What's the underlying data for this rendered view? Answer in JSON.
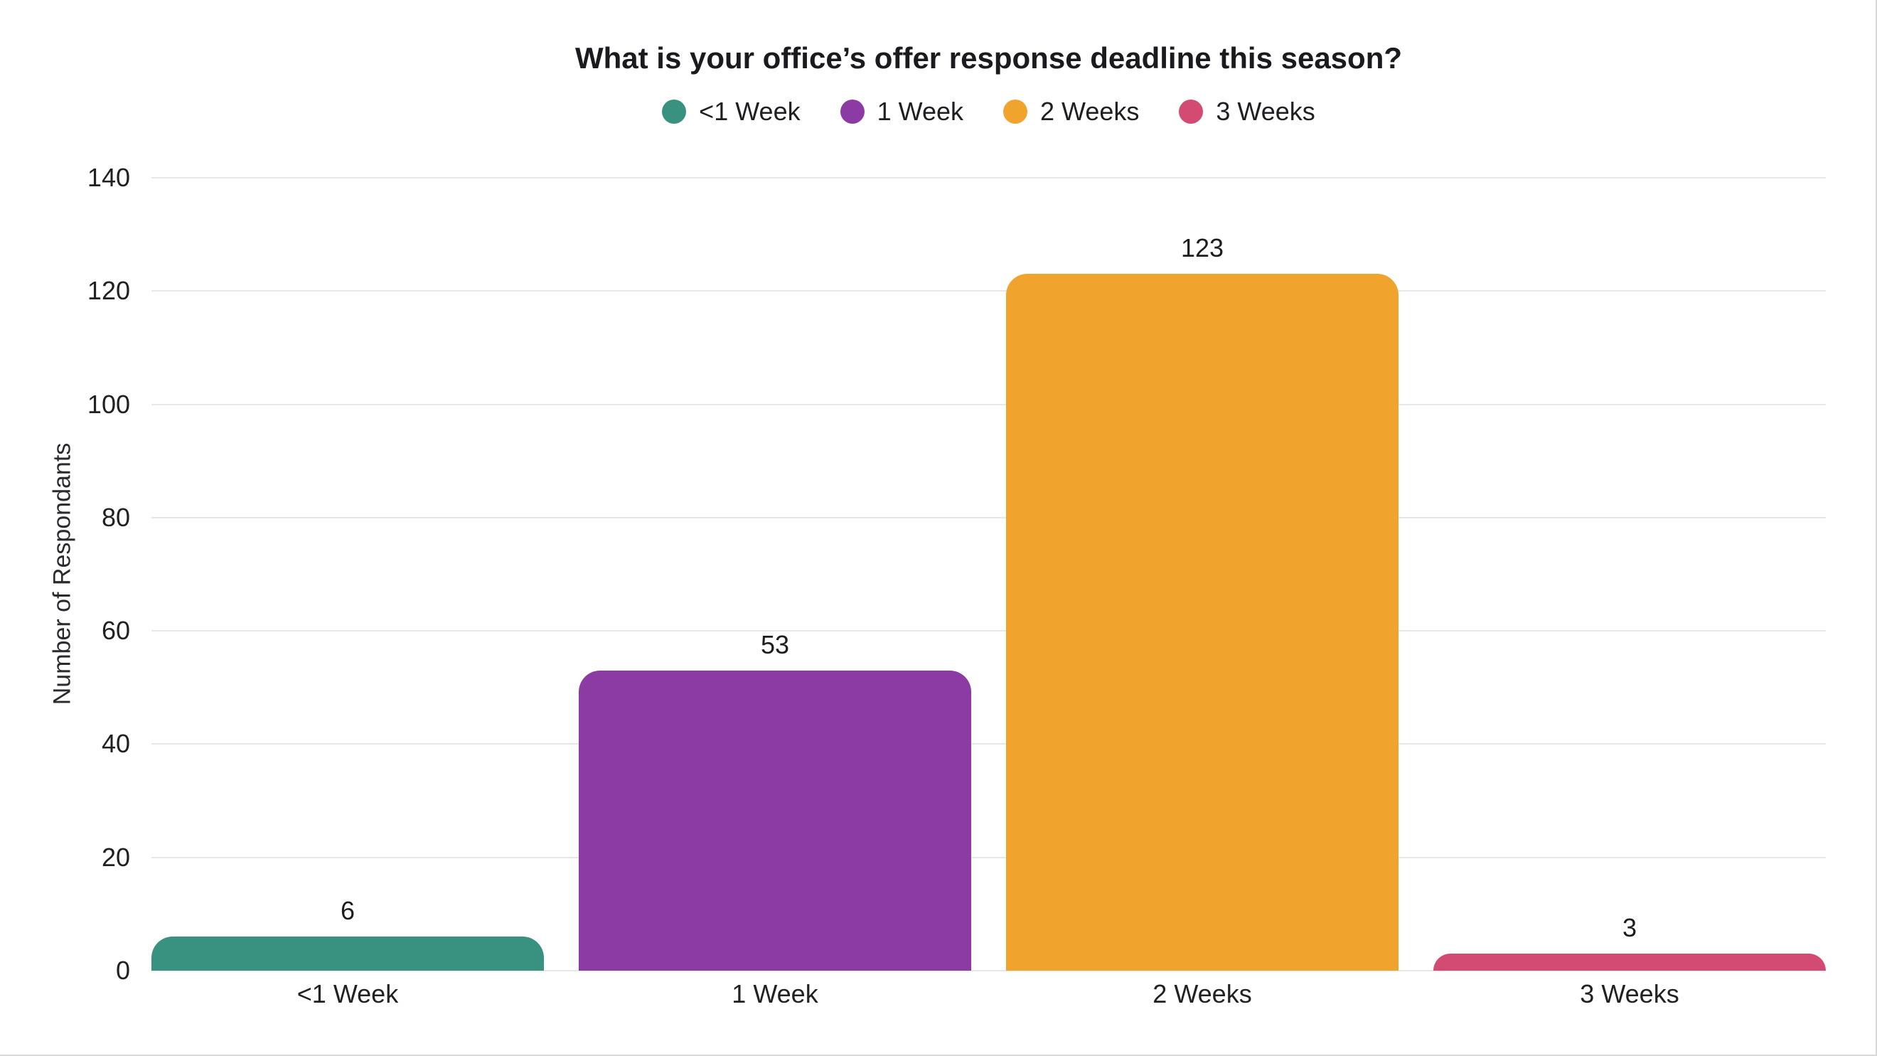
{
  "chart": {
    "title": "What is your office’s offer response deadline this season?",
    "y_axis_label": "Number of Respondants"
  },
  "chart_data": {
    "type": "bar",
    "title": "What is your office’s offer response deadline this season?",
    "categories": [
      "<1 Week",
      "1 Week",
      "2 Weeks",
      "3 Weeks"
    ],
    "values": [
      6,
      53,
      123,
      3
    ],
    "bar_colors": [
      "#399180",
      "#8C3AA4",
      "#F0A42D",
      "#D34A72"
    ],
    "legend": [
      {
        "label": "<1 Week",
        "color": "#399180"
      },
      {
        "label": "1 Week",
        "color": "#8C3AA4"
      },
      {
        "label": "2 Weeks",
        "color": "#F0A42D"
      },
      {
        "label": "3 Weeks",
        "color": "#D34A72"
      }
    ],
    "xlabel": "",
    "ylabel": "Number of Respondants",
    "ylim": [
      0,
      140
    ],
    "yticks": [
      0,
      20,
      40,
      60,
      80,
      100,
      120,
      140
    ],
    "grid": true,
    "legend_position": "top",
    "gridline_color": "#e7e7e7",
    "text_color": "#212121"
  }
}
